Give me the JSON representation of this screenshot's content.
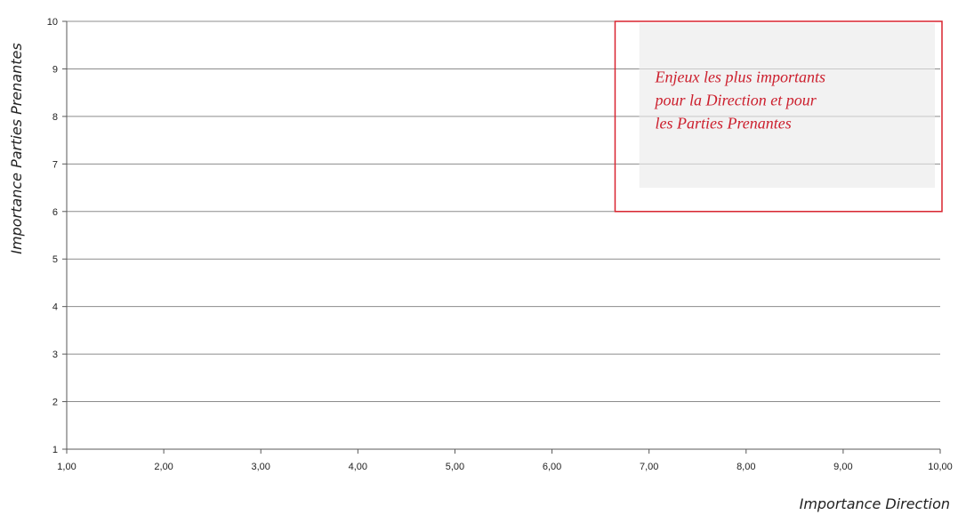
{
  "chart_data": {
    "type": "scatter",
    "title": "",
    "xlabel": "Importance Direction",
    "ylabel": "Importance Parties Prenantes",
    "xlim": [
      1,
      10
    ],
    "ylim": [
      1,
      10
    ],
    "x_ticks": [
      1,
      2,
      3,
      4,
      5,
      6,
      7,
      8,
      9,
      10
    ],
    "x_tick_labels": [
      "1,00",
      "2,00",
      "3,00",
      "4,00",
      "5,00",
      "6,00",
      "7,00",
      "8,00",
      "9,00",
      "10,00"
    ],
    "y_ticks": [
      1,
      2,
      3,
      4,
      5,
      6,
      7,
      8,
      9,
      10
    ],
    "y_tick_labels": [
      "1",
      "2",
      "3",
      "4",
      "5",
      "6",
      "7",
      "8",
      "9",
      "10"
    ],
    "grid": "horizontal",
    "series": [],
    "annotation": {
      "text_lines": [
        "Enjeux les plus importants",
        "pour la Direction et pour",
        "les Parties Prenantes"
      ],
      "region": {
        "x": [
          6.65,
          10
        ],
        "y": [
          6,
          10
        ]
      },
      "shaded_region": {
        "x": [
          6.9,
          10
        ],
        "y": [
          6.5,
          10
        ]
      },
      "border_color": "#d9232e",
      "fill_color": "#f2f2f2",
      "text_color": "#cc1f2d"
    },
    "colors": {
      "gridline": "#8c8c8c",
      "axis": "#595959",
      "text": "#222222"
    }
  }
}
